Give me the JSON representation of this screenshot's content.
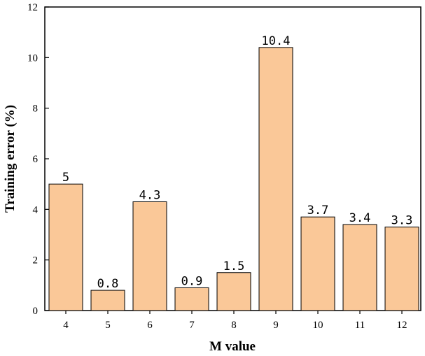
{
  "chart_data": {
    "type": "bar",
    "categories": [
      "4",
      "5",
      "6",
      "7",
      "8",
      "9",
      "10",
      "11",
      "12"
    ],
    "values": [
      5,
      0.8,
      4.3,
      0.9,
      1.5,
      10.4,
      3.7,
      3.4,
      3.3
    ],
    "value_labels": [
      "5",
      "0.8",
      "4.3",
      "0.9",
      "1.5",
      "10.4",
      "3.7",
      "3.4",
      "3.3"
    ],
    "title": "",
    "xlabel": "M value",
    "ylabel": "Training error (%)",
    "ylim": [
      0,
      12
    ],
    "yticks": [
      0,
      2,
      4,
      6,
      8,
      10,
      12
    ],
    "grid": false,
    "bar_color": "#fac898",
    "bar_edge_color": "#000000"
  }
}
